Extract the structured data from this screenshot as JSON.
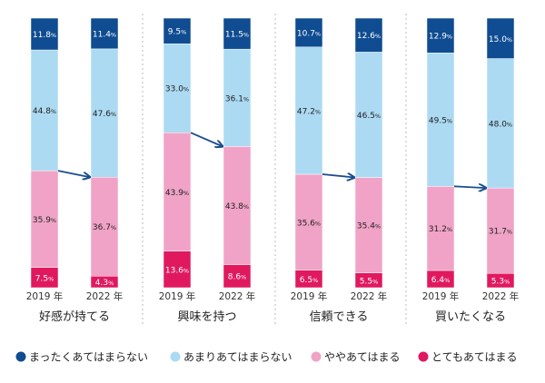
{
  "chart_data": {
    "type": "bar",
    "stacked": true,
    "percent_suffix": "%",
    "series": [
      {
        "name": "まったくあてはまらない",
        "color": "#0f4c91",
        "label_color": "#ffffff"
      },
      {
        "name": "あまりあてはまらない",
        "color": "#acdaf2",
        "label_color": "#222222"
      },
      {
        "name": "ややあてはまる",
        "color": "#f0a3c6",
        "label_color": "#222222"
      },
      {
        "name": "とてもあてはまる",
        "color": "#e0195f",
        "label_color": "#ffffff"
      }
    ],
    "groups": [
      {
        "label": "好感が持てる",
        "bars": [
          {
            "year": "2019 年",
            "values": [
              11.8,
              44.8,
              35.9,
              7.5
            ]
          },
          {
            "year": "2022 年",
            "values": [
              11.4,
              47.6,
              36.7,
              4.3
            ]
          }
        ]
      },
      {
        "label": "興味を持つ",
        "bars": [
          {
            "year": "2019 年",
            "values": [
              9.5,
              33.0,
              43.9,
              13.6
            ]
          },
          {
            "year": "2022 年",
            "values": [
              11.5,
              36.1,
              43.8,
              8.6
            ]
          }
        ]
      },
      {
        "label": "信頼できる",
        "bars": [
          {
            "year": "2019 年",
            "values": [
              10.7,
              47.2,
              35.6,
              6.5
            ]
          },
          {
            "year": "2022 年",
            "values": [
              12.6,
              46.5,
              35.4,
              5.5
            ]
          }
        ]
      },
      {
        "label": "買いたくなる",
        "bars": [
          {
            "year": "2019 年",
            "values": [
              12.9,
              49.5,
              31.2,
              6.4
            ]
          },
          {
            "year": "2022 年",
            "values": [
              15.0,
              48.0,
              31.7,
              5.3
            ]
          }
        ]
      }
    ],
    "legend_position": "bottom",
    "arrow_color": "#1a4d8f"
  }
}
